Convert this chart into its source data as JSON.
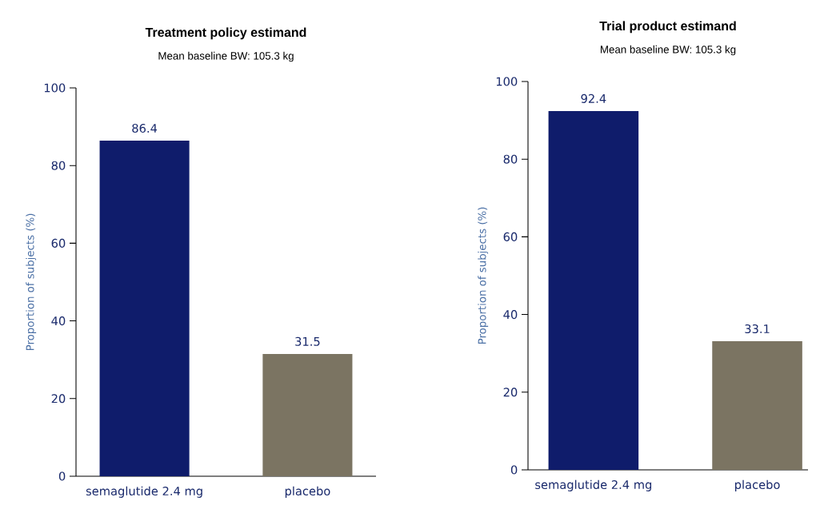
{
  "chart_data": [
    {
      "type": "bar",
      "title": "Treatment policy estimand",
      "subtitle": "Mean baseline BW: 105.3 kg",
      "ylabel": "Proportion of subjects (%)",
      "categories": [
        "semaglutide 2.4 mg",
        "placebo"
      ],
      "values": [
        86.4,
        31.5
      ],
      "colors": [
        "#0f1c6b",
        "#7b7462"
      ],
      "ylim": [
        0,
        100
      ],
      "yticks": [
        0,
        20,
        40,
        60,
        80,
        100
      ],
      "data_labels": true
    },
    {
      "type": "bar",
      "title": "Trial product estimand",
      "subtitle": "Mean baseline BW: 105.3 kg",
      "ylabel": "Proportion of subjects (%)",
      "categories": [
        "semaglutide 2.4 mg",
        "placebo"
      ],
      "values": [
        92.4,
        33.1
      ],
      "colors": [
        "#0f1c6b",
        "#7b7462"
      ],
      "ylim": [
        0,
        100
      ],
      "yticks": [
        0,
        20,
        40,
        60,
        80,
        100
      ],
      "data_labels": true
    }
  ]
}
